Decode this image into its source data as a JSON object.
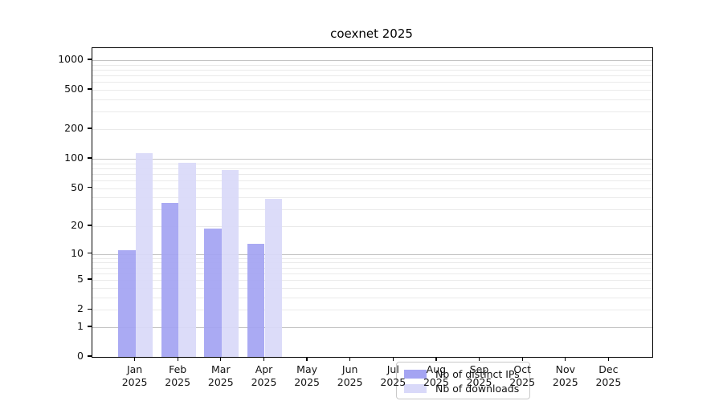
{
  "chart_data": {
    "type": "bar",
    "title": "coexnet 2025",
    "categories": [
      "Jan",
      "Feb",
      "Mar",
      "Apr",
      "May",
      "Jun",
      "Jul",
      "Aug",
      "Sep",
      "Oct",
      "Nov",
      "Dec"
    ],
    "x_axis": {
      "year": "2025"
    },
    "series": [
      {
        "name": "Nb of distinct IPs",
        "color": "#a4a4f2",
        "values": [
          11,
          35,
          19,
          13,
          0,
          0,
          0,
          0,
          0,
          0,
          0,
          0
        ]
      },
      {
        "name": "Nb of downloads",
        "color": "#d9d9f9",
        "values": [
          115,
          91,
          77,
          39,
          0,
          0,
          0,
          0,
          0,
          0,
          0,
          0
        ]
      }
    ],
    "y_axis": {
      "scale": "log1p",
      "ticks": [
        1000,
        500,
        200,
        100,
        50,
        20,
        10,
        5,
        2,
        1,
        0
      ],
      "top_value": 1300
    },
    "legend_position": "lower center",
    "grid": "horizontal major and minor",
    "colors": {
      "grid_major": "#c3c3c3",
      "grid_minor": "#eaeaea",
      "axis": "#000000",
      "text": "#131313"
    }
  }
}
